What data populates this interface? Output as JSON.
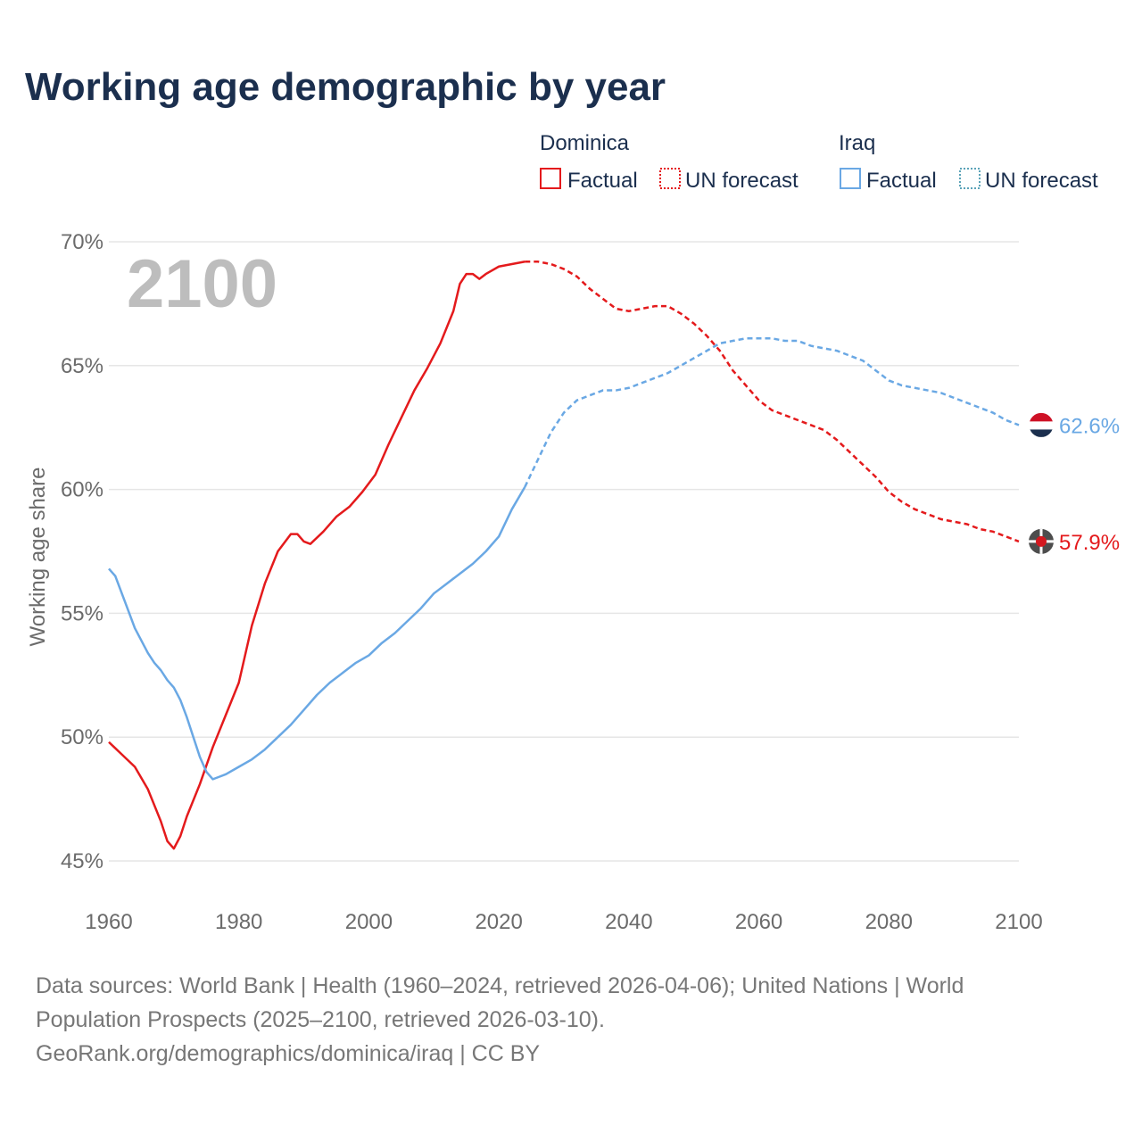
{
  "header": {
    "title": "Working age demographic by year",
    "year_overlay": "2100"
  },
  "legend": [
    {
      "group": "Dominica",
      "color": "#e41a1c",
      "factual_label": "Factual",
      "forecast_label": "UN forecast"
    },
    {
      "group": "Iraq",
      "color": "#6aa8e4",
      "factual_label": "Factual",
      "forecast_label": "UN forecast"
    }
  ],
  "footer": {
    "line1": "Data sources: World Bank | Health (1960–2024, retrieved 2026-04-06); United Nations | World",
    "line2": "Population Prospects (2025–2100, retrieved 2026-03-10).",
    "line3": "GeoRank.org/demographics/dominica/iraq | CC BY"
  },
  "chart_data": {
    "type": "line",
    "title": "Working age demographic by year",
    "xlabel": "",
    "ylabel": "Working age share",
    "xlim": [
      1960,
      2100
    ],
    "ylim": [
      45,
      70
    ],
    "xticks": [
      1960,
      1980,
      2000,
      2020,
      2040,
      2060,
      2080,
      2100
    ],
    "xtick_labels": [
      "1960",
      "1980",
      "2000",
      "2020",
      "2040",
      "2060",
      "2080",
      "2100"
    ],
    "yticks": [
      45,
      50,
      55,
      60,
      65,
      70
    ],
    "ytick_labels": [
      "45%",
      "50%",
      "55%",
      "60%",
      "65%",
      "70%"
    ],
    "grid": true,
    "forecast_start": 2024,
    "series": [
      {
        "name": "Dominica",
        "color": "#e41a1c",
        "end_label": "57.9%",
        "points": [
          [
            1960,
            49.8
          ],
          [
            1962,
            49.3
          ],
          [
            1964,
            48.8
          ],
          [
            1966,
            47.9
          ],
          [
            1968,
            46.6
          ],
          [
            1969,
            45.8
          ],
          [
            1970,
            45.5
          ],
          [
            1971,
            46.0
          ],
          [
            1972,
            46.8
          ],
          [
            1974,
            48.1
          ],
          [
            1976,
            49.6
          ],
          [
            1978,
            50.9
          ],
          [
            1980,
            52.2
          ],
          [
            1982,
            54.5
          ],
          [
            1984,
            56.2
          ],
          [
            1986,
            57.5
          ],
          [
            1988,
            58.2
          ],
          [
            1989,
            58.2
          ],
          [
            1990,
            57.9
          ],
          [
            1991,
            57.8
          ],
          [
            1993,
            58.3
          ],
          [
            1995,
            58.9
          ],
          [
            1997,
            59.3
          ],
          [
            1999,
            59.9
          ],
          [
            2001,
            60.6
          ],
          [
            2003,
            61.8
          ],
          [
            2005,
            62.9
          ],
          [
            2007,
            64.0
          ],
          [
            2009,
            64.9
          ],
          [
            2011,
            65.9
          ],
          [
            2013,
            67.2
          ],
          [
            2014,
            68.3
          ],
          [
            2015,
            68.7
          ],
          [
            2016,
            68.7
          ],
          [
            2017,
            68.5
          ],
          [
            2018,
            68.7
          ],
          [
            2020,
            69.0
          ],
          [
            2022,
            69.1
          ],
          [
            2024,
            69.2
          ],
          [
            2026,
            69.2
          ],
          [
            2028,
            69.1
          ],
          [
            2030,
            68.9
          ],
          [
            2032,
            68.6
          ],
          [
            2034,
            68.1
          ],
          [
            2036,
            67.7
          ],
          [
            2038,
            67.3
          ],
          [
            2040,
            67.2
          ],
          [
            2042,
            67.3
          ],
          [
            2044,
            67.4
          ],
          [
            2046,
            67.4
          ],
          [
            2048,
            67.1
          ],
          [
            2050,
            66.7
          ],
          [
            2052,
            66.2
          ],
          [
            2054,
            65.6
          ],
          [
            2056,
            64.8
          ],
          [
            2058,
            64.2
          ],
          [
            2060,
            63.6
          ],
          [
            2062,
            63.2
          ],
          [
            2064,
            63.0
          ],
          [
            2066,
            62.8
          ],
          [
            2068,
            62.6
          ],
          [
            2070,
            62.4
          ],
          [
            2072,
            62.0
          ],
          [
            2074,
            61.5
          ],
          [
            2076,
            61.0
          ],
          [
            2078,
            60.5
          ],
          [
            2080,
            59.9
          ],
          [
            2082,
            59.5
          ],
          [
            2084,
            59.2
          ],
          [
            2086,
            59.0
          ],
          [
            2088,
            58.8
          ],
          [
            2090,
            58.7
          ],
          [
            2092,
            58.6
          ],
          [
            2094,
            58.4
          ],
          [
            2096,
            58.3
          ],
          [
            2098,
            58.1
          ],
          [
            2100,
            57.9
          ]
        ]
      },
      {
        "name": "Iraq",
        "color": "#6aa8e4",
        "end_label": "62.6%",
        "points": [
          [
            1960,
            56.8
          ],
          [
            1961,
            56.5
          ],
          [
            1962,
            55.8
          ],
          [
            1963,
            55.1
          ],
          [
            1964,
            54.4
          ],
          [
            1965,
            53.9
          ],
          [
            1966,
            53.4
          ],
          [
            1967,
            53.0
          ],
          [
            1968,
            52.7
          ],
          [
            1969,
            52.3
          ],
          [
            1970,
            52.0
          ],
          [
            1971,
            51.5
          ],
          [
            1972,
            50.8
          ],
          [
            1973,
            50.0
          ],
          [
            1974,
            49.2
          ],
          [
            1975,
            48.6
          ],
          [
            1976,
            48.3
          ],
          [
            1977,
            48.4
          ],
          [
            1978,
            48.5
          ],
          [
            1980,
            48.8
          ],
          [
            1982,
            49.1
          ],
          [
            1984,
            49.5
          ],
          [
            1986,
            50.0
          ],
          [
            1988,
            50.5
          ],
          [
            1990,
            51.1
          ],
          [
            1992,
            51.7
          ],
          [
            1994,
            52.2
          ],
          [
            1996,
            52.6
          ],
          [
            1998,
            53.0
          ],
          [
            2000,
            53.3
          ],
          [
            2002,
            53.8
          ],
          [
            2004,
            54.2
          ],
          [
            2006,
            54.7
          ],
          [
            2008,
            55.2
          ],
          [
            2010,
            55.8
          ],
          [
            2012,
            56.2
          ],
          [
            2014,
            56.6
          ],
          [
            2016,
            57.0
          ],
          [
            2018,
            57.5
          ],
          [
            2020,
            58.1
          ],
          [
            2022,
            59.2
          ],
          [
            2024,
            60.1
          ],
          [
            2026,
            61.2
          ],
          [
            2028,
            62.3
          ],
          [
            2030,
            63.1
          ],
          [
            2032,
            63.6
          ],
          [
            2034,
            63.8
          ],
          [
            2036,
            64.0
          ],
          [
            2038,
            64.0
          ],
          [
            2040,
            64.1
          ],
          [
            2042,
            64.3
          ],
          [
            2044,
            64.5
          ],
          [
            2046,
            64.7
          ],
          [
            2048,
            65.0
          ],
          [
            2050,
            65.3
          ],
          [
            2052,
            65.6
          ],
          [
            2054,
            65.9
          ],
          [
            2056,
            66.0
          ],
          [
            2058,
            66.1
          ],
          [
            2060,
            66.1
          ],
          [
            2062,
            66.1
          ],
          [
            2064,
            66.0
          ],
          [
            2066,
            66.0
          ],
          [
            2068,
            65.8
          ],
          [
            2070,
            65.7
          ],
          [
            2072,
            65.6
          ],
          [
            2074,
            65.4
          ],
          [
            2076,
            65.2
          ],
          [
            2078,
            64.8
          ],
          [
            2080,
            64.4
          ],
          [
            2082,
            64.2
          ],
          [
            2084,
            64.1
          ],
          [
            2086,
            64.0
          ],
          [
            2088,
            63.9
          ],
          [
            2090,
            63.7
          ],
          [
            2092,
            63.5
          ],
          [
            2094,
            63.3
          ],
          [
            2096,
            63.1
          ],
          [
            2098,
            62.8
          ],
          [
            2100,
            62.6
          ]
        ]
      }
    ]
  }
}
